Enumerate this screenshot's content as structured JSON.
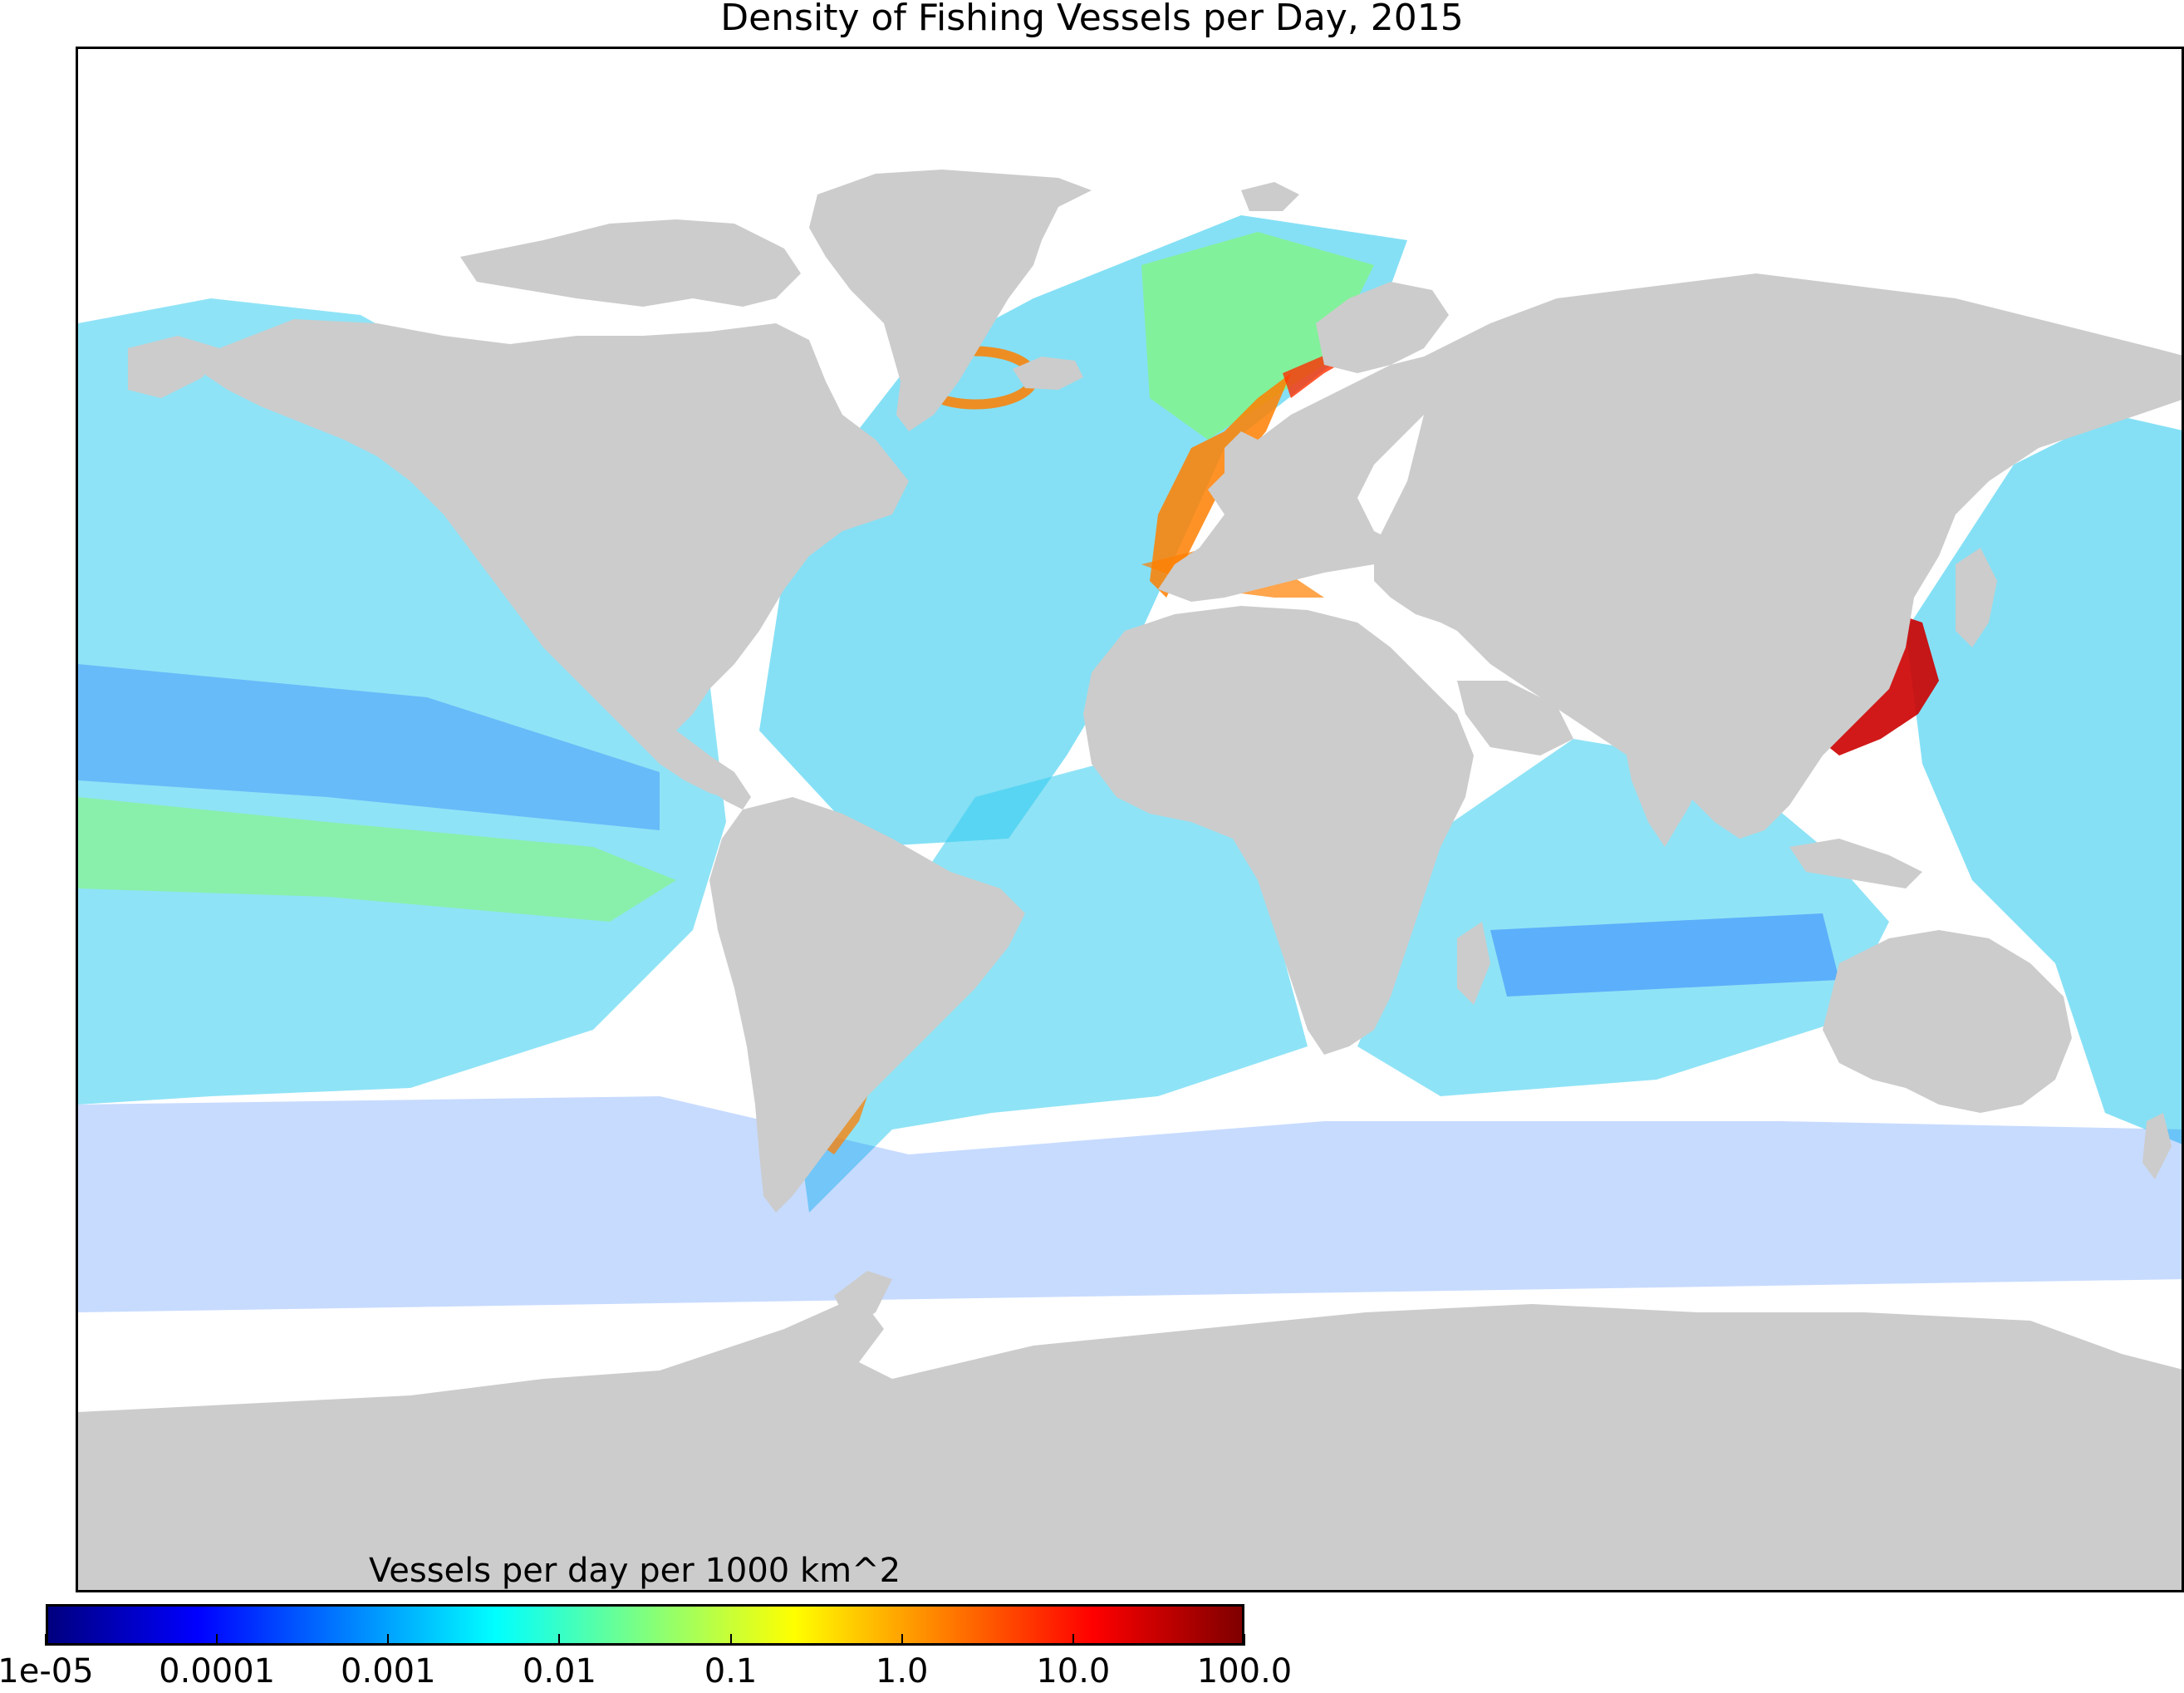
{
  "title": "Density of Fishing Vessels per Day, 2015",
  "colorbar": {
    "label": "Vessels per day per 1000 km^2",
    "scale": "log",
    "colormap": "jet",
    "ticks": [
      "1e-05",
      "0.0001",
      "0.001",
      "0.01",
      "0.1",
      "1.0",
      "10.0",
      "100.0"
    ],
    "stops": [
      "#00007f",
      "#0000ff",
      "#007fff",
      "#00ffff",
      "#7fff7f",
      "#ffff00",
      "#ff7f00",
      "#ff0000",
      "#7f0000"
    ]
  },
  "colors": {
    "land": "#cccccc",
    "ocean": "#ffffff",
    "low": "#1e6fff",
    "mid": "#33ccee",
    "high": "#80ff50",
    "peak": "#ff3000"
  }
}
